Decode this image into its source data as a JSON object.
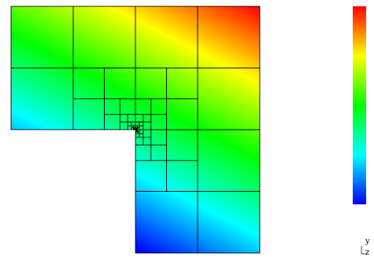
{
  "figure": {
    "type": "adaptive-mesh-contour-plot",
    "domain_shape": "L-shaped",
    "colormap": "jet",
    "colormap_stops": [
      "#0000ff",
      "#0080ff",
      "#00ffff",
      "#00ff80",
      "#00ff00",
      "#80ff00",
      "#ffff00",
      "#ff8000",
      "#ff0000"
    ],
    "mesh_line_color": "#000000",
    "colorbar": {
      "orientation": "vertical",
      "tick_labels": []
    },
    "axes_indicator": {
      "vertical_label": "y",
      "horizontal_label": "z"
    }
  }
}
